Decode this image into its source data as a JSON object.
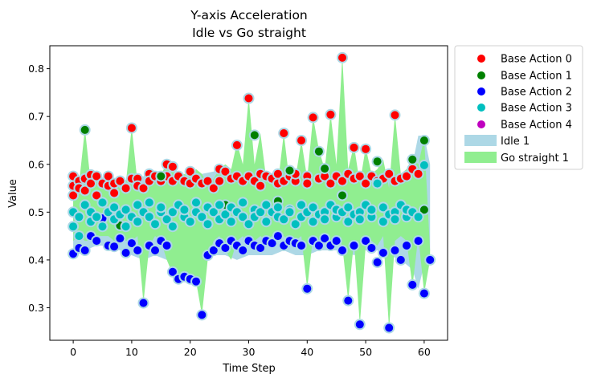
{
  "chart_data": {
    "type": "scatter",
    "title": "Y-axis Acceleration",
    "subtitle": "Idle vs Go straight",
    "xlabel": "Time Step",
    "ylabel": "Value",
    "xlim": [
      -4,
      64
    ],
    "ylim": [
      0.232,
      0.848
    ],
    "xticks": [
      0,
      10,
      20,
      30,
      40,
      50,
      60
    ],
    "yticks": [
      0.3,
      0.4,
      0.5,
      0.6,
      0.7,
      0.8
    ],
    "grid": false,
    "legend_placement": "outside-right",
    "bands": [
      {
        "name": "Idle 1",
        "color": "#add8e6",
        "x": [
          0,
          2,
          4,
          6,
          8,
          10,
          12,
          14,
          16,
          18,
          20,
          22,
          24,
          26,
          28,
          30,
          32,
          34,
          36,
          38,
          40,
          42,
          44,
          46,
          48,
          50,
          52,
          54,
          56,
          58,
          59,
          60,
          61
        ],
        "upper": [
          0.58,
          0.57,
          0.575,
          0.57,
          0.565,
          0.57,
          0.575,
          0.585,
          0.58,
          0.575,
          0.58,
          0.58,
          0.585,
          0.59,
          0.57,
          0.575,
          0.58,
          0.575,
          0.58,
          0.585,
          0.58,
          0.58,
          0.575,
          0.57,
          0.575,
          0.58,
          0.575,
          0.585,
          0.58,
          0.6,
          0.66,
          0.66,
          0.6
        ],
        "lower": [
          0.41,
          0.42,
          0.43,
          0.43,
          0.42,
          0.41,
          0.4,
          0.41,
          0.4,
          0.41,
          0.4,
          0.39,
          0.41,
          0.41,
          0.4,
          0.41,
          0.41,
          0.41,
          0.42,
          0.41,
          0.41,
          0.42,
          0.42,
          0.42,
          0.41,
          0.42,
          0.42,
          0.41,
          0.4,
          0.38,
          0.34,
          0.39,
          0.42
        ]
      },
      {
        "name": "Go straight 1",
        "color": "#90ee90",
        "x": [
          0,
          1,
          2,
          3,
          4,
          5,
          6,
          7,
          8,
          9,
          10,
          11,
          12,
          13,
          14,
          15,
          16,
          17,
          18,
          19,
          20,
          21,
          22,
          23,
          24,
          25,
          26,
          27,
          28,
          29,
          30,
          31,
          32,
          33,
          34,
          35,
          36,
          37,
          38,
          39,
          40,
          41,
          42,
          43,
          44,
          45,
          46,
          47,
          48,
          49,
          50,
          51,
          52,
          53,
          54,
          55,
          56,
          57,
          58,
          59,
          60,
          61
        ],
        "upper": [
          0.53,
          0.56,
          0.675,
          0.56,
          0.58,
          0.56,
          0.55,
          0.56,
          0.55,
          0.56,
          0.678,
          0.56,
          0.55,
          0.57,
          0.58,
          0.58,
          0.6,
          0.59,
          0.575,
          0.58,
          0.575,
          0.59,
          0.58,
          0.56,
          0.57,
          0.59,
          0.6,
          0.59,
          0.645,
          0.6,
          0.74,
          0.6,
          0.665,
          0.57,
          0.58,
          0.56,
          0.665,
          0.56,
          0.57,
          0.65,
          0.57,
          0.7,
          0.63,
          0.59,
          0.705,
          0.6,
          0.826,
          0.59,
          0.64,
          0.56,
          0.635,
          0.58,
          0.59,
          0.61,
          0.55,
          0.705,
          0.58,
          0.59,
          0.615,
          0.6,
          0.655,
          0.42
        ],
        "lower": [
          0.44,
          0.45,
          0.44,
          0.44,
          0.45,
          0.45,
          0.45,
          0.44,
          0.45,
          0.44,
          0.44,
          0.45,
          0.31,
          0.43,
          0.45,
          0.44,
          0.4,
          0.37,
          0.36,
          0.365,
          0.36,
          0.355,
          0.285,
          0.4,
          0.44,
          0.45,
          0.42,
          0.4,
          0.44,
          0.45,
          0.43,
          0.44,
          0.45,
          0.44,
          0.45,
          0.44,
          0.45,
          0.44,
          0.44,
          0.45,
          0.34,
          0.45,
          0.44,
          0.45,
          0.44,
          0.45,
          0.43,
          0.315,
          0.44,
          0.265,
          0.43,
          0.44,
          0.43,
          0.45,
          0.255,
          0.44,
          0.45,
          0.44,
          0.345,
          0.45,
          0.33,
          0.4
        ]
      }
    ],
    "series": [
      {
        "name": "Base Action 0",
        "color": "#ff0000",
        "x": [
          0,
          0,
          0,
          1,
          1,
          2,
          2,
          3,
          3,
          4,
          4,
          5,
          6,
          6,
          7,
          7,
          8,
          9,
          10,
          10,
          11,
          11,
          12,
          13,
          13,
          14,
          15,
          16,
          16,
          17,
          17,
          18,
          19,
          20,
          20,
          21,
          22,
          23,
          24,
          25,
          25,
          26,
          27,
          28,
          28,
          29,
          30,
          30,
          31,
          32,
          32,
          33,
          34,
          35,
          35,
          36,
          36,
          37,
          38,
          38,
          39,
          40,
          40,
          41,
          42,
          43,
          44,
          44,
          45,
          46,
          46,
          47,
          48,
          48,
          49,
          50,
          50,
          51,
          52,
          53,
          54,
          55,
          55,
          56,
          57,
          58,
          59
        ],
        "y": [
          0.575,
          0.555,
          0.535,
          0.565,
          0.55,
          0.57,
          0.545,
          0.578,
          0.56,
          0.575,
          0.535,
          0.56,
          0.575,
          0.555,
          0.56,
          0.54,
          0.565,
          0.55,
          0.676,
          0.57,
          0.57,
          0.555,
          0.55,
          0.58,
          0.565,
          0.575,
          0.565,
          0.6,
          0.575,
          0.595,
          0.565,
          0.575,
          0.565,
          0.585,
          0.56,
          0.57,
          0.56,
          0.565,
          0.55,
          0.59,
          0.565,
          0.585,
          0.57,
          0.64,
          0.575,
          0.565,
          0.738,
          0.575,
          0.565,
          0.58,
          0.555,
          0.575,
          0.57,
          0.58,
          0.56,
          0.665,
          0.565,
          0.575,
          0.565,
          0.58,
          0.65,
          0.575,
          0.56,
          0.698,
          0.57,
          0.575,
          0.704,
          0.56,
          0.575,
          0.823,
          0.565,
          0.58,
          0.635,
          0.57,
          0.575,
          0.632,
          0.56,
          0.575,
          0.565,
          0.57,
          0.58,
          0.703,
          0.565,
          0.57,
          0.575,
          0.59,
          0.58
        ]
      },
      {
        "name": "Base Action 1",
        "color": "#008000",
        "x": [
          2,
          8,
          15,
          26,
          31,
          35,
          37,
          42,
          43,
          46,
          52,
          58,
          60,
          60
        ],
        "y": [
          0.672,
          0.472,
          0.575,
          0.515,
          0.661,
          0.523,
          0.587,
          0.627,
          0.591,
          0.535,
          0.606,
          0.61,
          0.65,
          0.505
        ]
      },
      {
        "name": "Base Action 2",
        "color": "#0000ff",
        "x": [
          0,
          1,
          2,
          3,
          4,
          5,
          6,
          7,
          8,
          9,
          10,
          11,
          12,
          13,
          14,
          15,
          16,
          17,
          18,
          19,
          20,
          21,
          22,
          23,
          24,
          25,
          26,
          27,
          28,
          29,
          30,
          31,
          32,
          33,
          34,
          35,
          36,
          37,
          38,
          39,
          40,
          41,
          42,
          43,
          44,
          45,
          46,
          47,
          48,
          49,
          50,
          51,
          52,
          53,
          54,
          55,
          56,
          57,
          58,
          59,
          60,
          61
        ],
        "y": [
          0.413,
          0.425,
          0.42,
          0.45,
          0.44,
          0.487,
          0.43,
          0.428,
          0.445,
          0.415,
          0.435,
          0.42,
          0.31,
          0.43,
          0.42,
          0.44,
          0.43,
          0.375,
          0.36,
          0.365,
          0.36,
          0.355,
          0.285,
          0.41,
          0.42,
          0.435,
          0.425,
          0.44,
          0.43,
          0.42,
          0.44,
          0.43,
          0.425,
          0.44,
          0.435,
          0.45,
          0.43,
          0.44,
          0.435,
          0.43,
          0.34,
          0.44,
          0.43,
          0.445,
          0.43,
          0.44,
          0.42,
          0.315,
          0.43,
          0.265,
          0.44,
          0.425,
          0.395,
          0.415,
          0.258,
          0.42,
          0.4,
          0.43,
          0.348,
          0.44,
          0.33,
          0.4
        ]
      },
      {
        "name": "Base Action 3",
        "color": "#00bfbf",
        "x": [
          0,
          0,
          1,
          1,
          2,
          3,
          3,
          4,
          5,
          5,
          6,
          7,
          7,
          8,
          9,
          9,
          10,
          11,
          11,
          12,
          13,
          13,
          14,
          15,
          15,
          16,
          17,
          17,
          18,
          19,
          19,
          20,
          21,
          21,
          22,
          23,
          23,
          24,
          25,
          25,
          26,
          27,
          27,
          28,
          29,
          29,
          30,
          31,
          31,
          32,
          33,
          33,
          34,
          35,
          35,
          36,
          37,
          37,
          38,
          39,
          39,
          40,
          41,
          41,
          42,
          43,
          43,
          44,
          45,
          45,
          46,
          47,
          47,
          48,
          49,
          49,
          50,
          51,
          51,
          52,
          53,
          53,
          54,
          55,
          55,
          56,
          57,
          57,
          58,
          59,
          60
        ],
        "y": [
          0.5,
          0.47,
          0.49,
          0.45,
          0.515,
          0.48,
          0.5,
          0.49,
          0.52,
          0.47,
          0.5,
          0.485,
          0.51,
          0.495,
          0.47,
          0.505,
          0.49,
          0.515,
          0.48,
          0.5,
          0.49,
          0.52,
          0.475,
          0.5,
          0.51,
          0.485,
          0.5,
          0.47,
          0.515,
          0.49,
          0.505,
          0.48,
          0.5,
          0.52,
          0.49,
          0.475,
          0.51,
          0.5,
          0.485,
          0.515,
          0.495,
          0.48,
          0.51,
          0.5,
          0.49,
          0.52,
          0.475,
          0.505,
          0.49,
          0.5,
          0.515,
          0.48,
          0.5,
          0.49,
          0.51,
          0.485,
          0.505,
          0.5,
          0.475,
          0.515,
          0.49,
          0.5,
          0.48,
          0.51,
          0.495,
          0.5,
          0.485,
          0.515,
          0.49,
          0.505,
          0.5,
          0.48,
          0.51,
          0.495,
          0.5,
          0.485,
          0.515,
          0.49,
          0.505,
          0.56,
          0.48,
          0.51,
          0.495,
          0.5,
          0.485,
          0.515,
          0.49,
          0.505,
          0.5,
          0.49,
          0.598
        ]
      },
      {
        "name": "Base Action 4",
        "color": "#bf00bf",
        "x": [],
        "y": []
      }
    ]
  }
}
